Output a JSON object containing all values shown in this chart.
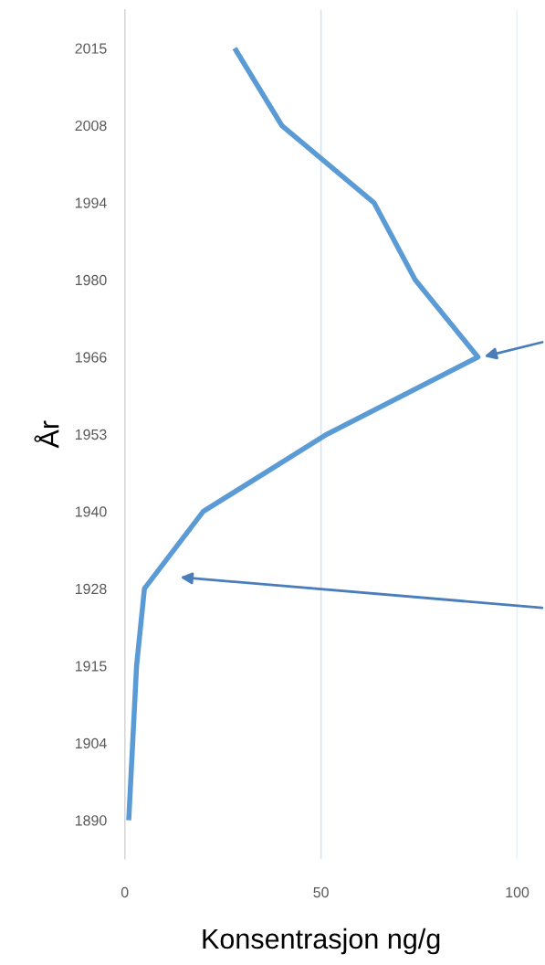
{
  "chart_data": {
    "type": "line",
    "orientation": "horizontal",
    "xlabel": "Konsentrasjon ng/g",
    "ylabel": "År",
    "categories": [
      "2015",
      "2008",
      "1994",
      "1980",
      "1966",
      "1953",
      "1940",
      "1928",
      "1915",
      "1904",
      "1890"
    ],
    "series": [
      {
        "color": "#5b9bd5",
        "values": [
          28,
          40,
          63.5,
          74,
          90,
          51.5,
          20,
          5,
          3,
          2,
          1
        ]
      }
    ],
    "xlim": [
      0,
      100
    ],
    "xticks": [
      0,
      50,
      100
    ],
    "grid": "x",
    "marker": "none",
    "line_style": "solid"
  }
}
